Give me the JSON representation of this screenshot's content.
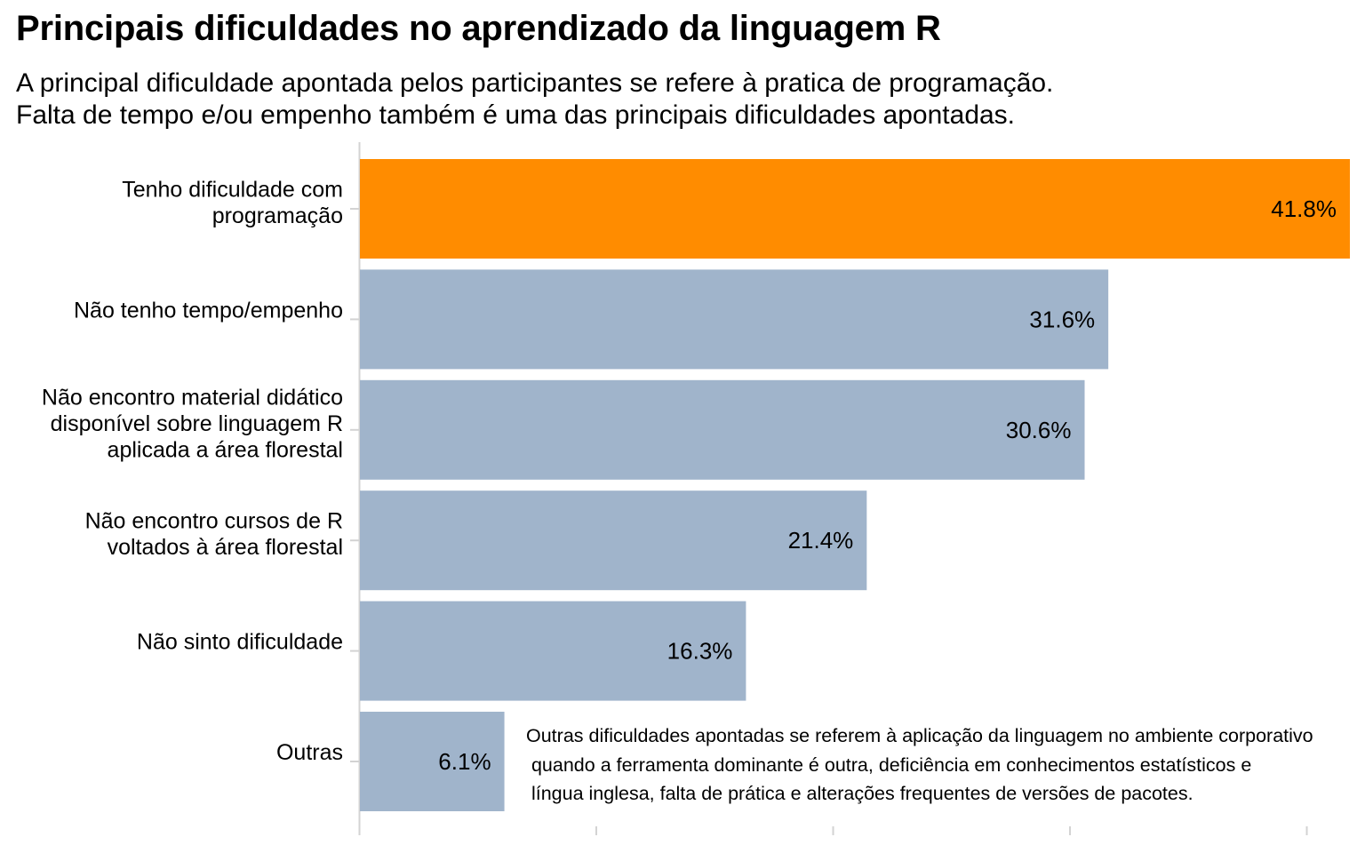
{
  "title": "Principais dificuldades no aprendizado da linguagem R",
  "subtitle": [
    "A principal dificuldade apontada pelos participantes se refere à pratica de programação.",
    "Falta de tempo e/ou empenho também é uma das principais dificuldades apontadas."
  ],
  "annotation": "Outras dificuldades apontadas se referem à aplicação da linguagem no ambiente corporativo\n quando a ferramenta dominante é outra, deficiência em conhecimentos estatísticos e\n língua inglesa, falta de prática e alterações frequentes de versões de pacotes.",
  "colors": {
    "highlight": "#FF8C00",
    "default": "#A0B4CB",
    "axis": "#D3D3D3"
  },
  "chart_data": {
    "type": "bar",
    "orientation": "horizontal",
    "categories": [
      [
        "Tenho dificuldade com",
        "programação"
      ],
      [
        "Não tenho tempo/empenho"
      ],
      [
        "Não encontro material didático",
        "disponível sobre linguagem R",
        "aplicada a área florestal"
      ],
      [
        "Não encontro cursos de R",
        "voltados à área florestal"
      ],
      [
        "Não sinto dificuldade"
      ],
      [
        "Outras"
      ]
    ],
    "values": [
      41.8,
      31.6,
      30.6,
      21.4,
      16.3,
      6.1
    ],
    "value_labels": [
      "41.8%",
      "31.6%",
      "30.6%",
      "21.4%",
      "16.3%",
      "6.1%"
    ],
    "highlight_index": 0,
    "xlim": [
      0,
      42
    ],
    "x_ticks": [
      0,
      10,
      20,
      30,
      40
    ],
    "x_tick_labels_visible": false,
    "grid": false
  }
}
